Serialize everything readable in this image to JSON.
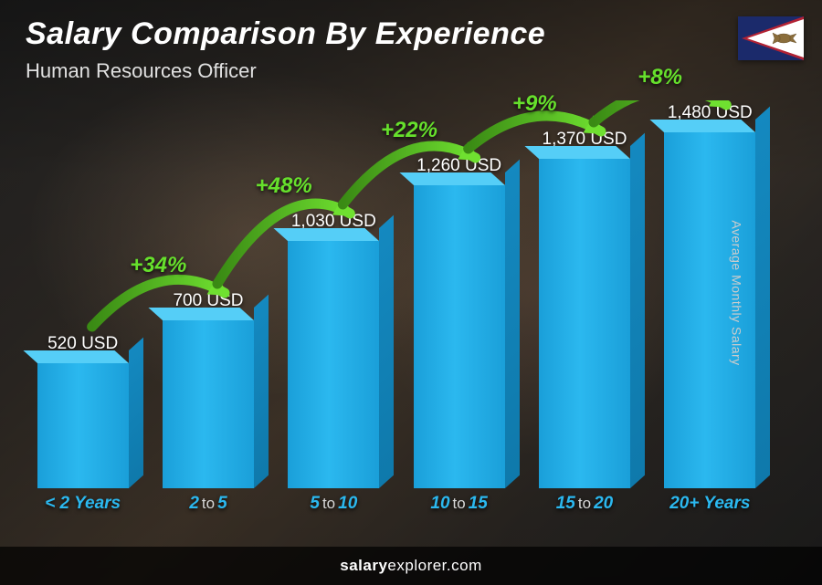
{
  "title": "Salary Comparison By Experience",
  "subtitle": "Human Resources Officer",
  "y_axis_label": "Average Monthly Salary",
  "footer_brand_bold": "salary",
  "footer_brand_rest": "explorer.com",
  "chart": {
    "type": "bar",
    "max_value": 1480,
    "bar_color_light": "#2bb8ef",
    "bar_color_dark": "#1a9fd9",
    "bar_top_color": "#55cef7",
    "bar_side_color": "#0f79ab",
    "arrow_color": "#5ac41f",
    "pct_color": "#66e02c",
    "background_colors": [
      "#2a2a2a",
      "#3a3530",
      "#5a4a3a"
    ],
    "value_fontsize": 19,
    "category_fontsize": 19,
    "pct_fontsize": 24,
    "title_fontsize": 34,
    "subtitle_fontsize": 22,
    "bars": [
      {
        "value": 520,
        "label": "520 USD",
        "cat_a": "< 2",
        "cat_mid": "",
        "cat_b": "Years"
      },
      {
        "value": 700,
        "label": "700 USD",
        "cat_a": "2",
        "cat_mid": "to",
        "cat_b": "5"
      },
      {
        "value": 1030,
        "label": "1,030 USD",
        "cat_a": "5",
        "cat_mid": "to",
        "cat_b": "10"
      },
      {
        "value": 1260,
        "label": "1,260 USD",
        "cat_a": "10",
        "cat_mid": "to",
        "cat_b": "15"
      },
      {
        "value": 1370,
        "label": "1,370 USD",
        "cat_a": "15",
        "cat_mid": "to",
        "cat_b": "20"
      },
      {
        "value": 1480,
        "label": "1,480 USD",
        "cat_a": "20+",
        "cat_mid": "",
        "cat_b": "Years"
      }
    ],
    "increases": [
      {
        "pct": "+34%"
      },
      {
        "pct": "+48%"
      },
      {
        "pct": "+22%"
      },
      {
        "pct": "+9%"
      },
      {
        "pct": "+8%"
      }
    ]
  },
  "flag": {
    "country": "American Samoa",
    "bg": "#1b2a6b",
    "triangle": "#ffffff",
    "triangle_border": "#b22234",
    "eagle": "#8a6d3b"
  }
}
